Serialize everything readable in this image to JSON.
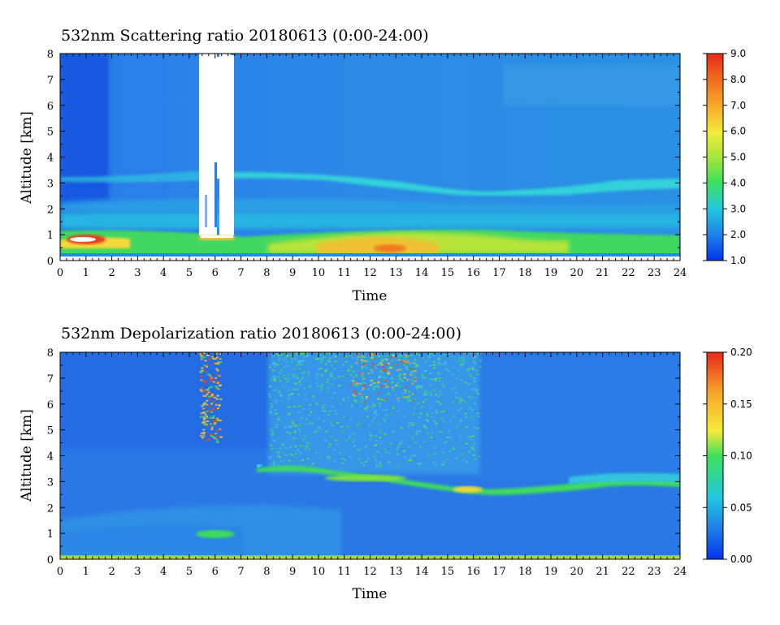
{
  "chart_data": [
    {
      "type": "heatmap",
      "title": "532nm Scattering ratio   20180613 (0:00-24:00)",
      "xlabel": "Time",
      "ylabel": "Altitude [km]",
      "xlim": [
        0,
        24
      ],
      "ylim": [
        0,
        8
      ],
      "xticks": [
        "0",
        "1",
        "2",
        "3",
        "4",
        "5",
        "6",
        "7",
        "8",
        "9",
        "10",
        "11",
        "12",
        "13",
        "14",
        "15",
        "16",
        "17",
        "18",
        "19",
        "20",
        "21",
        "22",
        "23",
        "24"
      ],
      "yticks": [
        "0",
        "1",
        "2",
        "3",
        "4",
        "5",
        "6",
        "7",
        "8"
      ],
      "colorbar": {
        "min": 1.0,
        "max": 9.0,
        "ticks": [
          "1.0",
          "2.0",
          "3.0",
          "4.0",
          "5.0",
          "6.0",
          "7.0",
          "8.0",
          "9.0"
        ],
        "colors": [
          "#0033ee",
          "#1f7fe8",
          "#22c8e0",
          "#3ee05a",
          "#a6e63c",
          "#f4ec3a",
          "#f7a82b",
          "#f06a1e",
          "#e8281a"
        ]
      },
      "background_value": 1.9,
      "features": [
        {
          "name": "boundary layer",
          "t0": 0,
          "t1": 24,
          "alt0": 0.2,
          "alt1": 1.2,
          "value": 4.6
        },
        {
          "name": "low dense layer",
          "t0": 0.5,
          "t1": 1.8,
          "alt0": 0.75,
          "alt1": 1.0,
          "value": 9.0
        },
        {
          "name": "elevated aerosol",
          "t0": 9.5,
          "t1": 16,
          "alt0": 0.3,
          "alt1": 1.1,
          "value": 6.0
        },
        {
          "name": "aerosol band",
          "t0": 0,
          "t1": 24,
          "alt0": 1.4,
          "alt1": 2.2,
          "value": 3.0
        },
        {
          "name": "aerosol layer",
          "t0": 6,
          "t1": 24,
          "alt0": 2.7,
          "alt1": 3.5,
          "value": 3.2
        },
        {
          "name": "no data",
          "t0": 5.4,
          "t1": 6.8,
          "alt0": 1.0,
          "alt1": 8.0,
          "value": null
        }
      ]
    },
    {
      "type": "heatmap",
      "title": "532nm Depolarization ratio   20180613 (0:00-24:00)",
      "xlabel": "Time",
      "ylabel": "Altitude [km]",
      "xlim": [
        0,
        24
      ],
      "ylim": [
        0,
        8
      ],
      "xticks": [
        "0",
        "1",
        "2",
        "3",
        "4",
        "5",
        "6",
        "7",
        "8",
        "9",
        "10",
        "11",
        "12",
        "13",
        "14",
        "15",
        "16",
        "17",
        "18",
        "19",
        "20",
        "21",
        "22",
        "23",
        "24"
      ],
      "yticks": [
        "0",
        "1",
        "2",
        "3",
        "4",
        "5",
        "6",
        "7",
        "8"
      ],
      "colorbar": {
        "min": 0.0,
        "max": 0.2,
        "ticks": [
          "0.00",
          "0.05",
          "0.10",
          "0.15",
          "0.20"
        ],
        "colors": [
          "#0033ee",
          "#1f7fe8",
          "#22c8e0",
          "#3ee05a",
          "#f4ec3a",
          "#f7a82b",
          "#e8281a"
        ]
      },
      "background_value": 0.03,
      "features": [
        {
          "name": "surface layer",
          "t0": 0,
          "t1": 24,
          "alt0": 0.0,
          "alt1": 0.2,
          "value": 0.09
        },
        {
          "name": "low layer",
          "t0": 0,
          "t1": 10,
          "alt0": 0.3,
          "alt1": 2.1,
          "value": 0.04
        },
        {
          "name": "dust layer",
          "t0": 9.5,
          "t1": 24,
          "alt0": 2.6,
          "alt1": 3.6,
          "value": 0.11
        },
        {
          "name": "cloud base",
          "t0": 5.3,
          "t1": 6.8,
          "alt0": 0.9,
          "alt1": 1.1,
          "value": 0.1
        },
        {
          "name": "upper noise",
          "t0": 10.5,
          "t1": 13.5,
          "alt0": 5,
          "alt1": 8,
          "value": 0.08
        },
        {
          "name": "upper noise",
          "t0": 5.4,
          "t1": 6.3,
          "alt0": 4.5,
          "alt1": 8,
          "value": 0.14
        }
      ]
    }
  ]
}
